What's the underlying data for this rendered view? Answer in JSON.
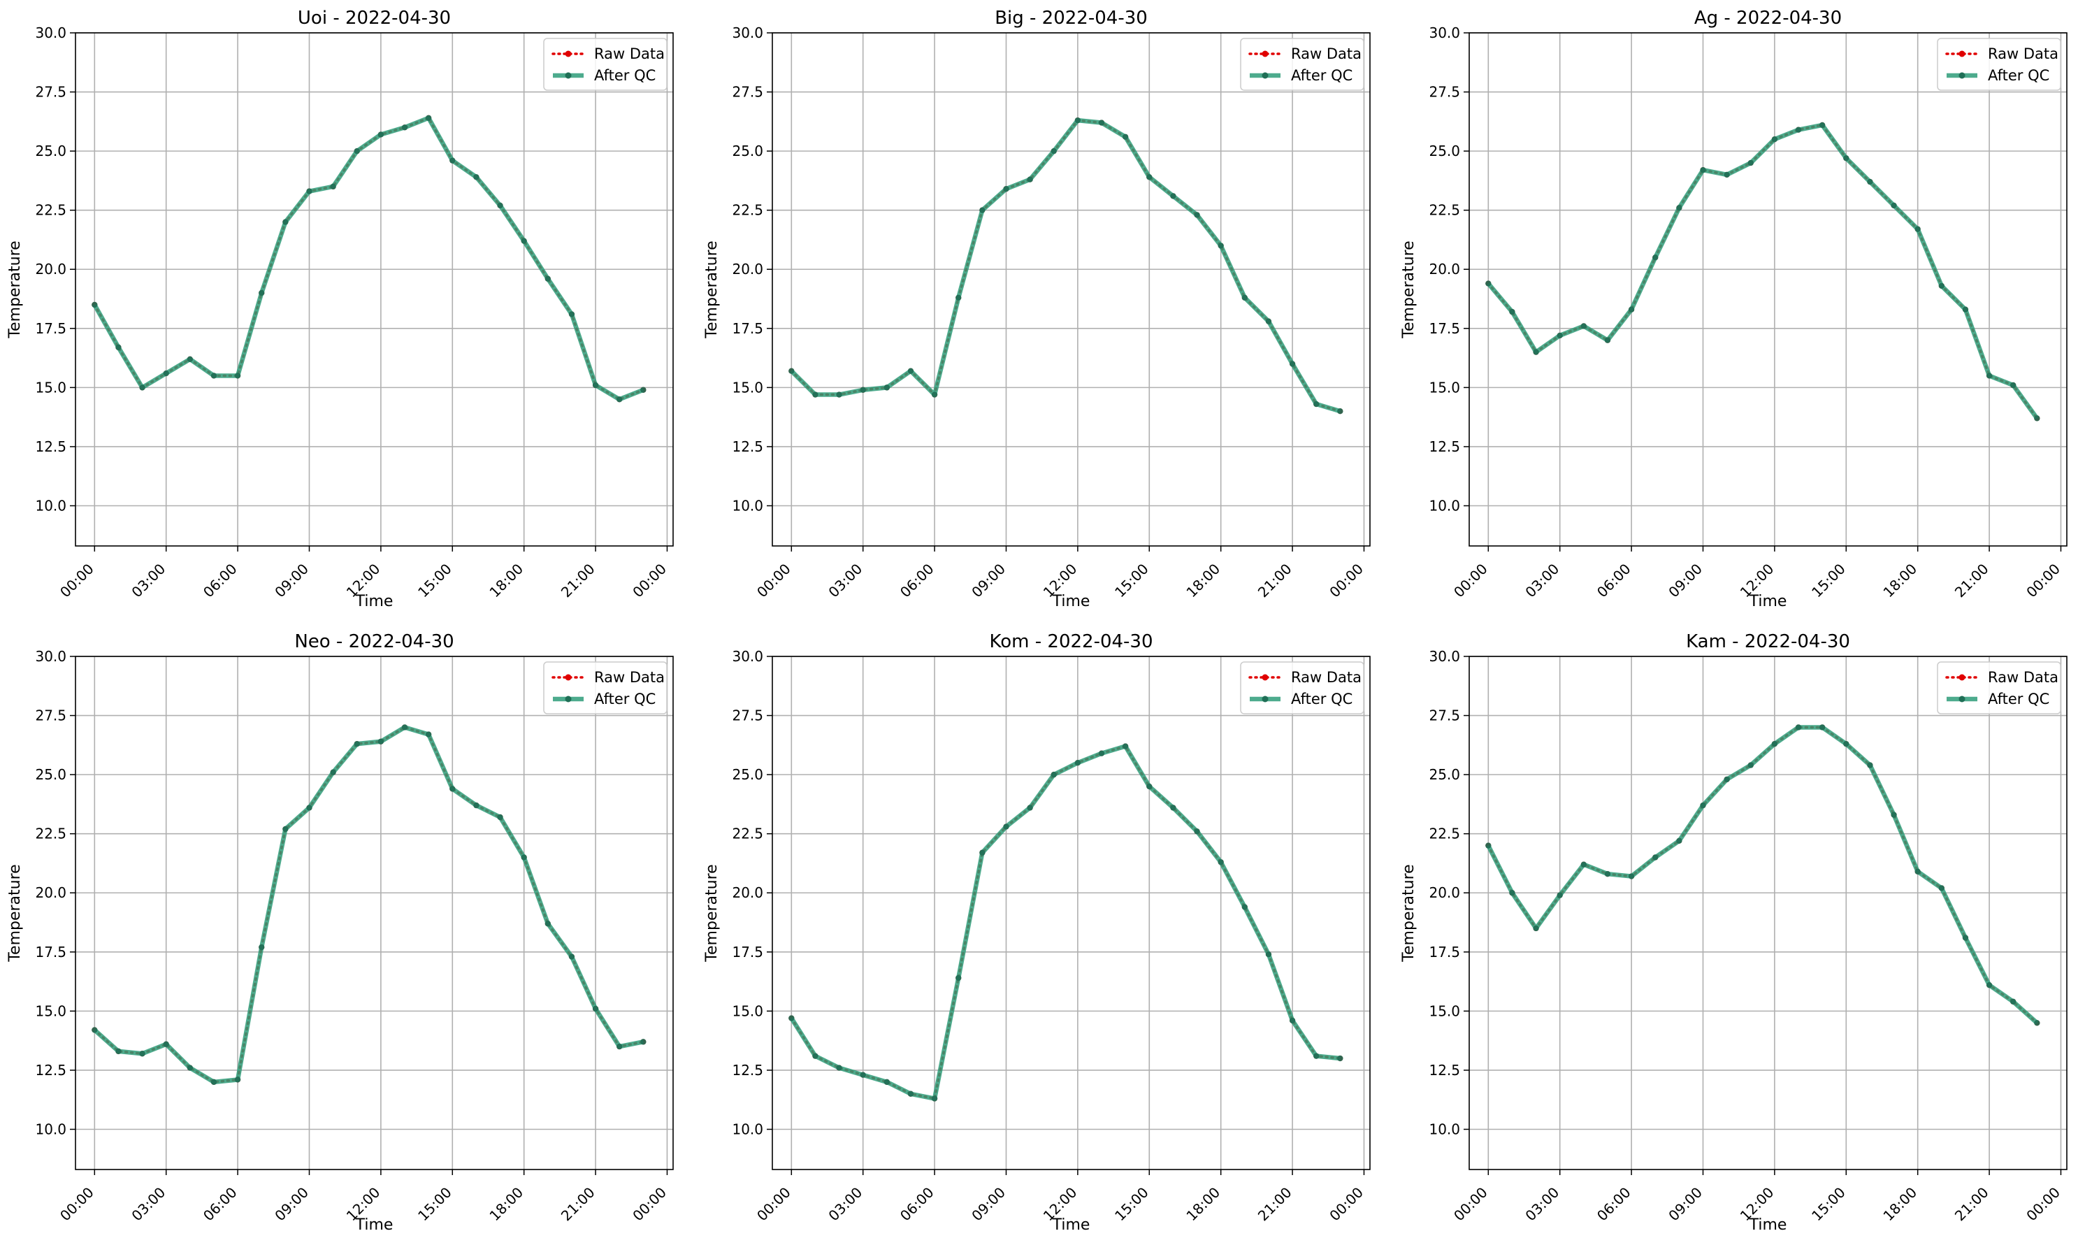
{
  "figure": {
    "time_ticks": [
      "00:00",
      "03:00",
      "06:00",
      "09:00",
      "12:00",
      "15:00",
      "18:00",
      "21:00",
      "00:00"
    ],
    "y_ticks": [
      10.0,
      12.5,
      15.0,
      17.5,
      20.0,
      22.5,
      25.0,
      27.5,
      30.0
    ],
    "colors": {
      "raw": "#e00000",
      "qc_line": "#2e9c79",
      "qc_marker": "#1f6f56",
      "grid": "#b0b0b0"
    }
  },
  "chart_data": [
    {
      "type": "line",
      "title": "Uoi - 2022-04-30",
      "xlabel": "Time",
      "ylabel": "Temperature",
      "xlim": [
        "2022-04-30 00:00",
        "2022-05-01 00:00"
      ],
      "ylim": [
        8.3,
        30.0
      ],
      "grid": true,
      "legend": "top-right",
      "x": [
        0,
        1,
        2,
        3,
        4,
        5,
        6,
        7,
        8,
        9,
        10,
        11,
        12,
        13,
        14,
        15,
        16,
        17,
        18,
        19,
        20,
        21,
        22,
        23
      ],
      "series": [
        {
          "name": "Raw Data",
          "values": [
            18.5,
            16.7,
            15.0,
            15.6,
            16.2,
            15.5,
            15.5,
            19.0,
            22.0,
            23.3,
            23.5,
            25.0,
            25.7,
            26.0,
            26.4,
            24.6,
            23.9,
            22.7,
            21.2,
            19.6,
            18.1,
            15.1,
            14.5,
            14.9
          ]
        },
        {
          "name": "After QC",
          "values": [
            18.5,
            16.7,
            15.0,
            15.6,
            16.2,
            15.5,
            15.5,
            19.0,
            22.0,
            23.3,
            23.5,
            25.0,
            25.7,
            26.0,
            26.4,
            24.6,
            23.9,
            22.7,
            21.2,
            19.6,
            18.1,
            15.1,
            14.5,
            14.9
          ]
        }
      ]
    },
    {
      "type": "line",
      "title": "Big - 2022-04-30",
      "xlabel": "Time",
      "ylabel": "Temperature",
      "xlim": [
        "2022-04-30 00:00",
        "2022-05-01 00:00"
      ],
      "ylim": [
        8.3,
        30.0
      ],
      "grid": true,
      "legend": "top-right",
      "x": [
        0,
        1,
        2,
        3,
        4,
        5,
        6,
        7,
        8,
        9,
        10,
        11,
        12,
        13,
        14,
        15,
        16,
        17,
        18,
        19,
        20,
        21,
        22,
        23
      ],
      "series": [
        {
          "name": "Raw Data",
          "values": [
            15.7,
            14.7,
            14.7,
            14.9,
            15.0,
            15.7,
            14.7,
            18.8,
            22.5,
            23.4,
            23.8,
            25.0,
            26.3,
            26.2,
            25.6,
            23.9,
            23.1,
            22.3,
            21.0,
            18.8,
            17.8,
            16.0,
            14.3,
            14.0
          ]
        },
        {
          "name": "After QC",
          "values": [
            15.7,
            14.7,
            14.7,
            14.9,
            15.0,
            15.7,
            14.7,
            18.8,
            22.5,
            23.4,
            23.8,
            25.0,
            26.3,
            26.2,
            25.6,
            23.9,
            23.1,
            22.3,
            21.0,
            18.8,
            17.8,
            16.0,
            14.3,
            14.0
          ]
        }
      ]
    },
    {
      "type": "line",
      "title": "Ag - 2022-04-30",
      "xlabel": "Time",
      "ylabel": "Temperature",
      "xlim": [
        "2022-04-30 00:00",
        "2022-05-01 00:00"
      ],
      "ylim": [
        8.3,
        30.0
      ],
      "grid": true,
      "legend": "top-right",
      "x": [
        0,
        1,
        2,
        3,
        4,
        5,
        6,
        7,
        8,
        9,
        10,
        11,
        12,
        13,
        14,
        15,
        16,
        17,
        18,
        19,
        20,
        21,
        22,
        23
      ],
      "series": [
        {
          "name": "Raw Data",
          "values": [
            19.4,
            18.2,
            16.5,
            17.2,
            17.6,
            17.0,
            18.3,
            20.5,
            22.6,
            24.2,
            24.0,
            24.5,
            25.5,
            25.9,
            26.1,
            24.7,
            23.7,
            22.7,
            21.7,
            19.3,
            18.3,
            15.5,
            15.1,
            13.7
          ]
        },
        {
          "name": "After QC",
          "values": [
            19.4,
            18.2,
            16.5,
            17.2,
            17.6,
            17.0,
            18.3,
            20.5,
            22.6,
            24.2,
            24.0,
            24.5,
            25.5,
            25.9,
            26.1,
            24.7,
            23.7,
            22.7,
            21.7,
            19.3,
            18.3,
            15.5,
            15.1,
            13.7
          ]
        }
      ]
    },
    {
      "type": "line",
      "title": "Neo - 2022-04-30",
      "xlabel": "Time",
      "ylabel": "Temperature",
      "xlim": [
        "2022-04-30 00:00",
        "2022-05-01 00:00"
      ],
      "ylim": [
        8.3,
        30.0
      ],
      "grid": true,
      "legend": "top-right",
      "x": [
        0,
        1,
        2,
        3,
        4,
        5,
        6,
        7,
        8,
        9,
        10,
        11,
        12,
        13,
        14,
        15,
        16,
        17,
        18,
        19,
        20,
        21,
        22,
        23
      ],
      "series": [
        {
          "name": "Raw Data",
          "values": [
            14.2,
            13.3,
            13.2,
            13.6,
            12.6,
            12.0,
            12.1,
            17.7,
            22.7,
            23.6,
            25.1,
            26.3,
            26.4,
            27.0,
            26.7,
            24.4,
            23.7,
            23.2,
            21.5,
            18.7,
            17.3,
            15.1,
            13.5,
            13.7
          ]
        },
        {
          "name": "After QC",
          "values": [
            14.2,
            13.3,
            13.2,
            13.6,
            12.6,
            12.0,
            12.1,
            17.7,
            22.7,
            23.6,
            25.1,
            26.3,
            26.4,
            27.0,
            26.7,
            24.4,
            23.7,
            23.2,
            21.5,
            18.7,
            17.3,
            15.1,
            13.5,
            13.7
          ]
        }
      ]
    },
    {
      "type": "line",
      "title": "Kom - 2022-04-30",
      "xlabel": "Time",
      "ylabel": "Temperature",
      "xlim": [
        "2022-04-30 00:00",
        "2022-05-01 00:00"
      ],
      "ylim": [
        8.3,
        30.0
      ],
      "grid": true,
      "legend": "top-right",
      "x": [
        0,
        1,
        2,
        3,
        4,
        5,
        6,
        7,
        8,
        9,
        10,
        11,
        12,
        13,
        14,
        15,
        16,
        17,
        18,
        19,
        20,
        21,
        22,
        23
      ],
      "series": [
        {
          "name": "Raw Data",
          "values": [
            14.7,
            13.1,
            12.6,
            12.3,
            12.0,
            11.5,
            11.3,
            16.4,
            21.7,
            22.8,
            23.6,
            25.0,
            25.5,
            25.9,
            26.2,
            24.5,
            23.6,
            22.6,
            21.3,
            19.4,
            17.4,
            14.6,
            13.1,
            13.0
          ]
        },
        {
          "name": "After QC",
          "values": [
            14.7,
            13.1,
            12.6,
            12.3,
            12.0,
            11.5,
            11.3,
            16.4,
            21.7,
            22.8,
            23.6,
            25.0,
            25.5,
            25.9,
            26.2,
            24.5,
            23.6,
            22.6,
            21.3,
            19.4,
            17.4,
            14.6,
            13.1,
            13.0
          ]
        }
      ]
    },
    {
      "type": "line",
      "title": "Kam - 2022-04-30",
      "xlabel": "Time",
      "ylabel": "Temperature",
      "xlim": [
        "2022-04-30 00:00",
        "2022-05-01 00:00"
      ],
      "ylim": [
        8.3,
        30.0
      ],
      "grid": true,
      "legend": "top-right",
      "x": [
        0,
        1,
        2,
        3,
        4,
        5,
        6,
        7,
        8,
        9,
        10,
        11,
        12,
        13,
        14,
        15,
        16,
        17,
        18,
        19,
        20,
        21,
        22,
        23
      ],
      "series": [
        {
          "name": "Raw Data",
          "values": [
            22.0,
            20.0,
            18.5,
            19.9,
            21.2,
            20.8,
            20.7,
            21.5,
            22.2,
            23.7,
            24.8,
            25.4,
            26.3,
            27.0,
            27.0,
            26.3,
            25.4,
            23.3,
            20.9,
            20.2,
            18.1,
            16.1,
            15.4,
            14.5
          ]
        },
        {
          "name": "After QC",
          "values": [
            22.0,
            20.0,
            18.5,
            19.9,
            21.2,
            20.8,
            20.7,
            21.5,
            22.2,
            23.7,
            24.8,
            25.4,
            26.3,
            27.0,
            27.0,
            26.3,
            25.4,
            23.3,
            20.9,
            20.2,
            18.1,
            16.1,
            15.4,
            14.5
          ]
        }
      ]
    }
  ]
}
